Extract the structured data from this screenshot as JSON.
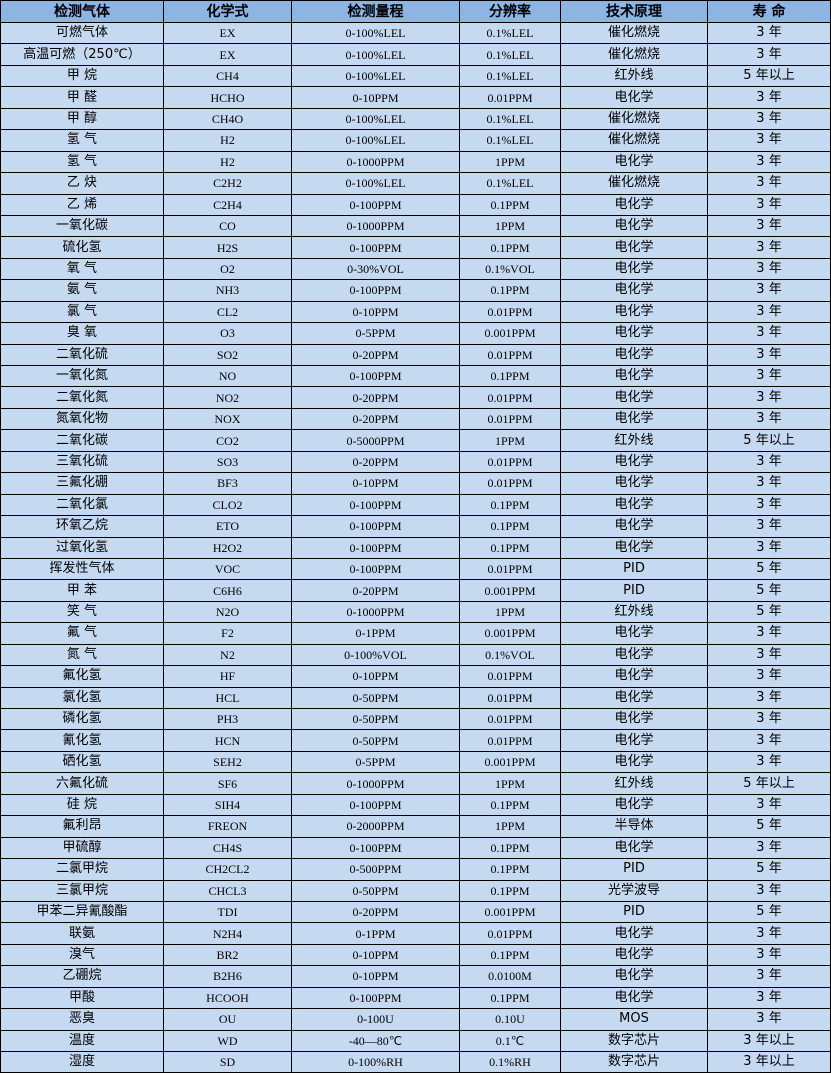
{
  "colors": {
    "header_bg": "#8db4e2",
    "row_bg": "#c5d9f1",
    "border": "#000000"
  },
  "headers": [
    "检测气体",
    "化学式",
    "检测量程",
    "分辨率",
    "技术原理",
    "寿  命"
  ],
  "rows": [
    [
      "可燃气体",
      "EX",
      "0-100%LEL",
      "0.1%LEL",
      "催化燃烧",
      "3 年"
    ],
    [
      "高温可燃（250℃）",
      "EX",
      "0-100%LEL",
      "0.1%LEL",
      "催化燃烧",
      "3 年"
    ],
    [
      "甲  烷",
      "CH4",
      "0-100%LEL",
      "0.1%LEL",
      "红外线",
      "5 年以上"
    ],
    [
      "甲  醛",
      "HCHO",
      "0-10PPM",
      "0.01PPM",
      "电化学",
      "3 年"
    ],
    [
      "甲  醇",
      "CH4O",
      "0-100%LEL",
      "0.1%LEL",
      "催化燃烧",
      "3 年"
    ],
    [
      "氢  气",
      "H2",
      "0-100%LEL",
      "0.1%LEL",
      "催化燃烧",
      "3 年"
    ],
    [
      "氢  气",
      "H2",
      "0-1000PPM",
      "1PPM",
      "电化学",
      "3 年"
    ],
    [
      "乙  炔",
      "C2H2",
      "0-100%LEL",
      "0.1%LEL",
      "催化燃烧",
      "3 年"
    ],
    [
      "乙  烯",
      "C2H4",
      "0-100PPM",
      "0.1PPM",
      "电化学",
      "3 年"
    ],
    [
      "一氧化碳",
      "CO",
      "0-1000PPM",
      "1PPM",
      "电化学",
      "3 年"
    ],
    [
      "硫化氢",
      "H2S",
      "0-100PPM",
      "0.1PPM",
      "电化学",
      "3 年"
    ],
    [
      "氧  气",
      "O2",
      "0-30%VOL",
      "0.1%VOL",
      "电化学",
      "3 年"
    ],
    [
      "氨  气",
      "NH3",
      "0-100PPM",
      "0.1PPM",
      "电化学",
      "3 年"
    ],
    [
      "氯  气",
      "CL2",
      "0-10PPM",
      "0.01PPM",
      "电化学",
      "3 年"
    ],
    [
      "臭  氧",
      "O3",
      "0-5PPM",
      "0.001PPM",
      "电化学",
      "3 年"
    ],
    [
      "二氧化硫",
      "SO2",
      "0-20PPM",
      "0.01PPM",
      "电化学",
      "3 年"
    ],
    [
      "一氧化氮",
      "NO",
      "0-100PPM",
      "0.1PPM",
      "电化学",
      "3 年"
    ],
    [
      "二氧化氮",
      "NO2",
      "0-20PPM",
      "0.01PPM",
      "电化学",
      "3 年"
    ],
    [
      "氮氧化物",
      "NOX",
      "0-20PPM",
      "0.01PPM",
      "电化学",
      "3 年"
    ],
    [
      "二氧化碳",
      "CO2",
      "0-5000PPM",
      "1PPM",
      "红外线",
      "5 年以上"
    ],
    [
      "三氧化硫",
      "SO3",
      "0-20PPM",
      "0.01PPM",
      "电化学",
      "3 年"
    ],
    [
      "三氟化硼",
      "BF3",
      "0-10PPM",
      "0.01PPM",
      "电化学",
      "3 年"
    ],
    [
      "二氧化氯",
      "CLO2",
      "0-100PPM",
      "0.1PPM",
      "电化学",
      "3 年"
    ],
    [
      "环氧乙烷",
      "ETO",
      "0-100PPM",
      "0.1PPM",
      "电化学",
      "3 年"
    ],
    [
      "过氧化氢",
      "H2O2",
      "0-100PPM",
      "0.1PPM",
      "电化学",
      "3 年"
    ],
    [
      "挥发性气体",
      "VOC",
      "0-100PPM",
      "0.01PPM",
      "PID",
      "5 年"
    ],
    [
      "甲  苯",
      "C6H6",
      "0-20PPM",
      "0.001PPM",
      "PID",
      "5 年"
    ],
    [
      "笑  气",
      "N2O",
      "0-1000PPM",
      "1PPM",
      "红外线",
      "5 年"
    ],
    [
      "氟  气",
      "F2",
      "0-1PPM",
      "0.001PPM",
      "电化学",
      "3 年"
    ],
    [
      "氮  气",
      "N2",
      "0-100%VOL",
      "0.1%VOL",
      "电化学",
      "3 年"
    ],
    [
      "氟化氢",
      "HF",
      "0-10PPM",
      "0.01PPM",
      "电化学",
      "3 年"
    ],
    [
      "氯化氢",
      "HCL",
      "0-50PPM",
      "0.01PPM",
      "电化学",
      "3 年"
    ],
    [
      "磷化氢",
      "PH3",
      "0-50PPM",
      "0.01PPM",
      "电化学",
      "3 年"
    ],
    [
      "氰化氢",
      "HCN",
      "0-50PPM",
      "0.01PPM",
      "电化学",
      "3 年"
    ],
    [
      "硒化氢",
      "SEH2",
      "0-5PPM",
      "0.001PPM",
      "电化学",
      "3 年"
    ],
    [
      "六氟化硫",
      "SF6",
      "0-1000PPM",
      "1PPM",
      "红外线",
      "5 年以上"
    ],
    [
      "硅  烷",
      "SIH4",
      "0-100PPM",
      "0.1PPM",
      "电化学",
      "3 年"
    ],
    [
      "氟利昂",
      "FREON",
      "0-2000PPM",
      "1PPM",
      "半导体",
      "5 年"
    ],
    [
      "甲硫醇",
      "CH4S",
      "0-100PPM",
      "0.1PPM",
      "电化学",
      "3 年"
    ],
    [
      "二氯甲烷",
      "CH2CL2",
      "0-500PPM",
      "0.1PPM",
      "PID",
      "5 年"
    ],
    [
      "三氯甲烷",
      "CHCL3",
      "0-50PPM",
      "0.1PPM",
      "光学波导",
      "3 年"
    ],
    [
      "甲苯二异氰酸酯",
      "TDI",
      "0-20PPM",
      "0.001PPM",
      "PID",
      "5 年"
    ],
    [
      "联氨",
      "N2H4",
      "0-1PPM",
      "0.01PPM",
      "电化学",
      "3 年"
    ],
    [
      "溴气",
      "BR2",
      "0-10PPM",
      "0.1PPM",
      "电化学",
      "3 年"
    ],
    [
      "乙硼烷",
      "B2H6",
      "0-10PPM",
      "0.0100M",
      "电化学",
      "3 年"
    ],
    [
      "甲酸",
      "HCOOH",
      "0-100PPM",
      "0.1PPM",
      "电化学",
      "3 年"
    ],
    [
      "恶臭",
      "OU",
      "0-100U",
      "0.10U",
      "MOS",
      "3 年"
    ],
    [
      "温度",
      "WD",
      "-40—80℃",
      "0.1℃",
      "数字芯片",
      "3 年以上"
    ],
    [
      "湿度",
      "SD",
      "0-100%RH",
      "0.1%RH",
      "数字芯片",
      "3 年以上"
    ]
  ]
}
